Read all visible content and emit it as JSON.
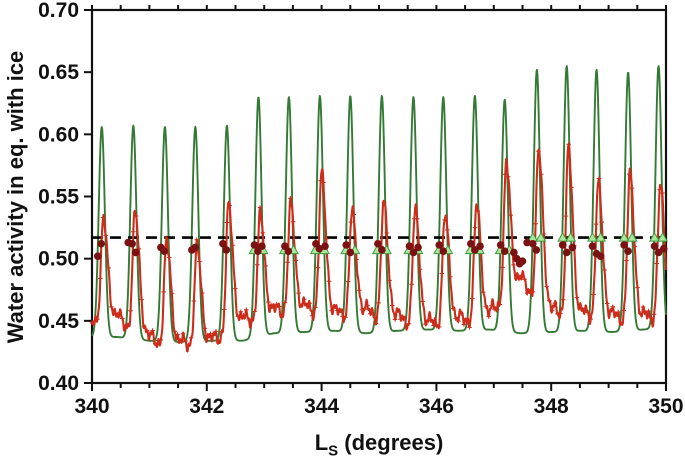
{
  "chart_data": {
    "type": "line",
    "title": "",
    "ylabel": "Water activity in eq. with ice",
    "xlabel": "LS (degrees)",
    "xlabel_parts": {
      "main": "L",
      "sub": "S",
      "rest": " (degrees)"
    },
    "xlim": [
      340,
      350
    ],
    "ylim": [
      0.4,
      0.7
    ],
    "x_major_ticks": [
      340,
      342,
      344,
      346,
      348,
      350
    ],
    "x_tick_labels": [
      "340",
      "342",
      "344",
      "346",
      "348",
      "350"
    ],
    "x_minor_tick_step": 0.5,
    "y_major_ticks": [
      0.4,
      0.45,
      0.5,
      0.55,
      0.6,
      0.65,
      0.7
    ],
    "y_tick_labels": [
      "0.40",
      "0.45",
      "0.50",
      "0.55",
      "0.60",
      "0.65",
      "0.70"
    ],
    "grid": false,
    "legend": "none",
    "frame": "full-box-with-mirrored-top-ticks",
    "dashed_line_y": 0.517,
    "dashed_line_color": "#000000",
    "axis_color": "#111111",
    "green_line": {
      "name": "model-water-activity",
      "color": "#347a35",
      "spike_width_deg": 0.075
    },
    "red_line": {
      "name": "measured-water-activity",
      "color": "#cd2c1b",
      "marker": "+",
      "peak_lag_deg": 0.03,
      "rise_width_deg": 0.062,
      "fall_width_deg": 0.105
    },
    "cycles": [
      {
        "ls": 339.62,
        "green_peak": 0.604,
        "red_peak": 0.53,
        "green_trough": 0.437,
        "red_trough": 0.447
      },
      {
        "ls": 340.17,
        "green_peak": 0.606,
        "red_peak": 0.533,
        "green_trough": 0.437,
        "red_trough": 0.447
      },
      {
        "ls": 340.72,
        "green_peak": 0.607,
        "red_peak": 0.539,
        "green_trough": 0.434,
        "red_trough": 0.43
      },
      {
        "ls": 341.27,
        "green_peak": 0.606,
        "red_peak": 0.515,
        "green_trough": 0.433,
        "red_trough": 0.426
      },
      {
        "ls": 341.8,
        "green_peak": 0.606,
        "red_peak": 0.511,
        "green_trough": 0.434,
        "red_trough": 0.428
      },
      {
        "ls": 342.35,
        "green_peak": 0.607,
        "red_peak": 0.545,
        "green_trough": 0.434,
        "red_trough": 0.445
      },
      {
        "ls": 342.9,
        "green_peak": 0.63,
        "red_peak": 0.537,
        "green_trough": 0.44,
        "red_trough": 0.452
      },
      {
        "ls": 343.43,
        "green_peak": 0.63,
        "red_peak": 0.545,
        "green_trough": 0.441,
        "red_trough": 0.455
      },
      {
        "ls": 343.97,
        "green_peak": 0.631,
        "red_peak": 0.57,
        "green_trough": 0.442,
        "red_trough": 0.45
      },
      {
        "ls": 344.5,
        "green_peak": 0.631,
        "red_peak": 0.54,
        "green_trough": 0.44,
        "red_trough": 0.452
      },
      {
        "ls": 345.05,
        "green_peak": 0.631,
        "red_peak": 0.546,
        "green_trough": 0.442,
        "red_trough": 0.447
      },
      {
        "ls": 345.6,
        "green_peak": 0.63,
        "red_peak": 0.541,
        "green_trough": 0.443,
        "red_trough": 0.442
      },
      {
        "ls": 346.12,
        "green_peak": 0.63,
        "red_peak": 0.537,
        "green_trough": 0.442,
        "red_trough": 0.445
      },
      {
        "ls": 346.67,
        "green_peak": 0.631,
        "red_peak": 0.545,
        "green_trough": 0.443,
        "red_trough": 0.45
      },
      {
        "ls": 347.19,
        "green_peak": 0.628,
        "red_peak": 0.578,
        "green_trough": 0.44,
        "red_trough": 0.478
      },
      {
        "ls": 347.75,
        "green_peak": 0.652,
        "red_peak": 0.589,
        "green_trough": 0.441,
        "red_trough": 0.452
      },
      {
        "ls": 348.27,
        "green_peak": 0.655,
        "red_peak": 0.59,
        "green_trough": 0.442,
        "red_trough": 0.45
      },
      {
        "ls": 348.79,
        "green_peak": 0.652,
        "red_peak": 0.562,
        "green_trough": 0.441,
        "red_trough": 0.448
      },
      {
        "ls": 349.34,
        "green_peak": 0.65,
        "red_peak": 0.569,
        "green_trough": 0.443,
        "red_trough": 0.447
      },
      {
        "ls": 349.87,
        "green_peak": 0.655,
        "red_peak": 0.56,
        "green_trough": 0.445,
        "red_trough": 0.45
      },
      {
        "ls": 350.42,
        "green_peak": 0.65,
        "red_peak": 0.555,
        "green_trough": 0.445,
        "red_trough": 0.45
      }
    ],
    "dark_red_dots": {
      "color": "#7a1113",
      "points": [
        [
          340.1,
          0.502
        ],
        [
          340.16,
          0.512
        ],
        [
          340.63,
          0.513
        ],
        [
          340.7,
          0.512
        ],
        [
          340.76,
          0.505
        ],
        [
          341.2,
          0.509
        ],
        [
          341.26,
          0.506
        ],
        [
          341.74,
          0.507
        ],
        [
          341.8,
          0.509
        ],
        [
          342.28,
          0.512
        ],
        [
          342.34,
          0.507
        ],
        [
          342.83,
          0.511
        ],
        [
          342.89,
          0.506
        ],
        [
          342.96,
          0.51
        ],
        [
          343.36,
          0.51
        ],
        [
          343.42,
          0.506
        ],
        [
          343.9,
          0.512
        ],
        [
          343.96,
          0.508
        ],
        [
          344.06,
          0.51
        ],
        [
          344.43,
          0.511
        ],
        [
          344.5,
          0.505
        ],
        [
          344.98,
          0.512
        ],
        [
          345.05,
          0.507
        ],
        [
          345.53,
          0.51
        ],
        [
          345.6,
          0.505
        ],
        [
          345.68,
          0.509
        ],
        [
          346.05,
          0.511
        ],
        [
          346.12,
          0.506
        ],
        [
          346.6,
          0.512
        ],
        [
          346.67,
          0.507
        ],
        [
          346.76,
          0.51
        ],
        [
          347.12,
          0.511
        ],
        [
          347.19,
          0.506
        ],
        [
          347.35,
          0.505
        ],
        [
          347.4,
          0.5
        ],
        [
          347.45,
          0.496
        ],
        [
          347.5,
          0.498
        ],
        [
          347.58,
          0.513
        ],
        [
          347.68,
          0.512
        ],
        [
          347.74,
          0.507
        ],
        [
          348.2,
          0.511
        ],
        [
          348.27,
          0.505
        ],
        [
          348.37,
          0.509
        ],
        [
          348.72,
          0.51
        ],
        [
          348.79,
          0.504
        ],
        [
          348.86,
          0.502
        ],
        [
          349.27,
          0.511
        ],
        [
          349.34,
          0.506
        ],
        [
          349.8,
          0.51
        ],
        [
          349.87,
          0.505
        ],
        [
          349.96,
          0.508
        ]
      ]
    },
    "light_green_triangles": {
      "fill": "#a9e79b",
      "edge": "#3f9a3f",
      "points": [
        [
          342.82,
          0.507
        ],
        [
          342.98,
          0.507
        ],
        [
          343.35,
          0.507
        ],
        [
          343.51,
          0.507
        ],
        [
          343.89,
          0.507
        ],
        [
          344.05,
          0.507
        ],
        [
          344.42,
          0.507
        ],
        [
          344.58,
          0.507
        ],
        [
          344.97,
          0.507
        ],
        [
          345.13,
          0.507
        ],
        [
          345.52,
          0.507
        ],
        [
          345.68,
          0.507
        ],
        [
          346.04,
          0.507
        ],
        [
          346.2,
          0.507
        ],
        [
          346.59,
          0.507
        ],
        [
          346.75,
          0.507
        ],
        [
          347.11,
          0.507
        ],
        [
          347.27,
          0.507
        ],
        [
          347.68,
          0.517
        ],
        [
          347.82,
          0.517
        ],
        [
          348.2,
          0.517
        ],
        [
          348.34,
          0.517
        ],
        [
          348.72,
          0.517
        ],
        [
          348.86,
          0.517
        ],
        [
          349.27,
          0.517
        ],
        [
          349.41,
          0.517
        ],
        [
          349.8,
          0.517
        ],
        [
          349.94,
          0.517
        ]
      ]
    }
  }
}
